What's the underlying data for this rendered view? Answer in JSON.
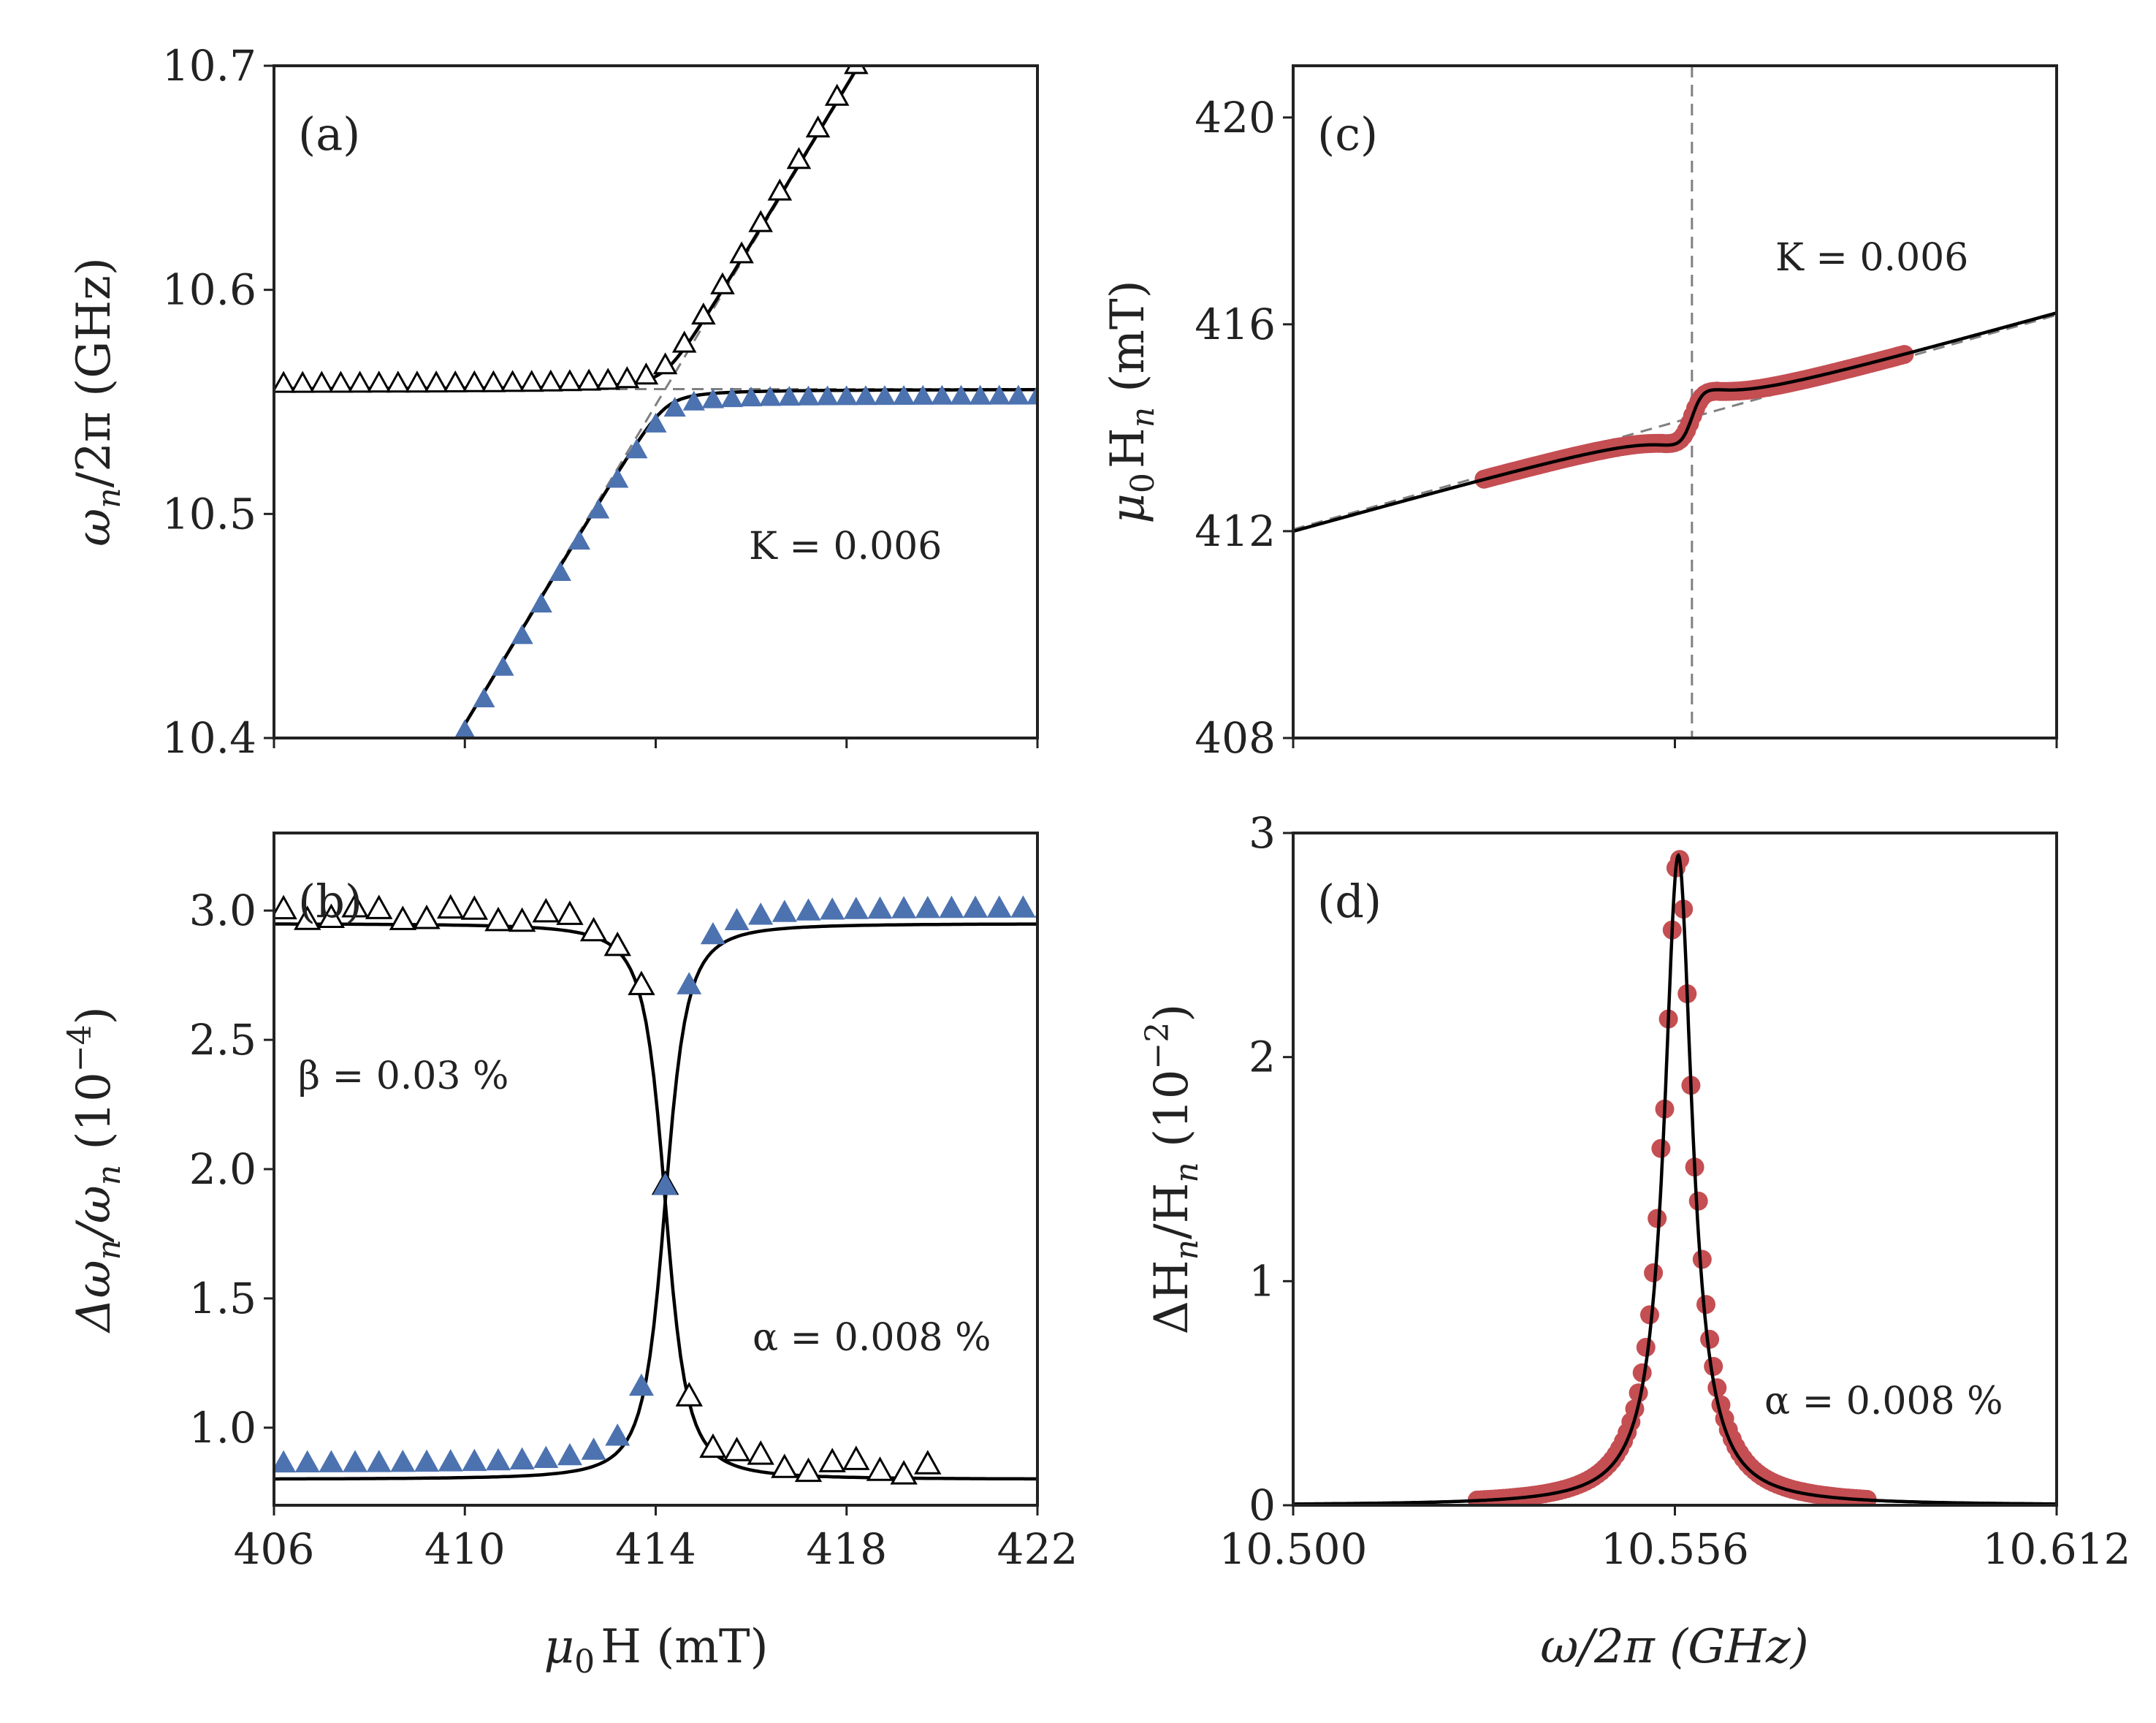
{
  "figure": {
    "colors": {
      "blue": "#4c72b0",
      "red": "#c44e52",
      "black": "#000000",
      "gray": "#808080",
      "axis": "#222222"
    }
  },
  "chart_data": [
    {
      "id": "a",
      "type": "line",
      "panel_label": "(a)",
      "annotation": "K = 0.006",
      "xlim": [
        406,
        422
      ],
      "ylim": [
        10.4,
        10.7
      ],
      "yticks": [
        "10.4",
        "10.5",
        "10.6",
        "10.7"
      ],
      "ylabel": "ω_n /2π (GHz)",
      "xlabel": "",
      "markers": [
        {
          "name": "upper-branch",
          "style": "open-triangle"
        },
        {
          "name": "lower-branch",
          "style": "filled-triangle"
        }
      ]
    },
    {
      "id": "b",
      "type": "line",
      "panel_label": "(b)",
      "annotations": [
        "β = 0.03 %",
        "α = 0.008 %"
      ],
      "xlim": [
        406,
        422
      ],
      "ylim": [
        0.7,
        3.3
      ],
      "xticks": [
        "406",
        "410",
        "414",
        "418",
        "422"
      ],
      "yticks": [
        "1.0",
        "1.5",
        "2.0",
        "2.5",
        "3.0"
      ],
      "ylabel": "Δω_n /ω_n (10^−4)",
      "xlabel": "μ₀ H (mT)"
    },
    {
      "id": "c",
      "type": "scatter",
      "panel_label": "(c)",
      "annotation": "K = 0.006",
      "xlim": [
        10.5,
        10.612
      ],
      "ylim": [
        408,
        421
      ],
      "yticks": [
        "408",
        "412",
        "416",
        "420"
      ],
      "ylabel": "μ₀ H_n (mT)",
      "xlabel": ""
    },
    {
      "id": "d",
      "type": "scatter",
      "panel_label": "(d)",
      "annotation": "α = 0.008 %",
      "xlim": [
        10.5,
        10.612
      ],
      "ylim": [
        0,
        3
      ],
      "xticks": [
        "10.500",
        "10.556",
        "10.612"
      ],
      "yticks": [
        "0",
        "1",
        "2",
        "3"
      ],
      "ylabel": "ΔH_n /H_n (10^−2)",
      "xlabel": "ω/2π (GHz)"
    }
  ],
  "axis_text": {
    "a_ylabel": {
      "main": "ω",
      "sub": "n",
      "rest": "/2π (GHz)"
    },
    "b_ylabel": {
      "main": "Δω",
      "sub": "n",
      "mid": "/ω",
      "sub2": "n",
      "rest": " (10",
      "sup": "−4",
      "close": ")"
    },
    "b_xlabel": {
      "main": "μ",
      "sub": "0",
      "rest": "H (mT)"
    },
    "c_ylabel": {
      "main": "μ",
      "sub": "0",
      "mid": "H",
      "sub2": "n",
      "rest": " (mT)"
    },
    "d_ylabel": {
      "main": "ΔH",
      "sub": "n",
      "mid": "/H",
      "sub2": "n",
      "rest": " (10",
      "sup": "−2",
      "close": ")"
    },
    "d_xlabel": {
      "main": "ω/2π (GHz)"
    }
  }
}
